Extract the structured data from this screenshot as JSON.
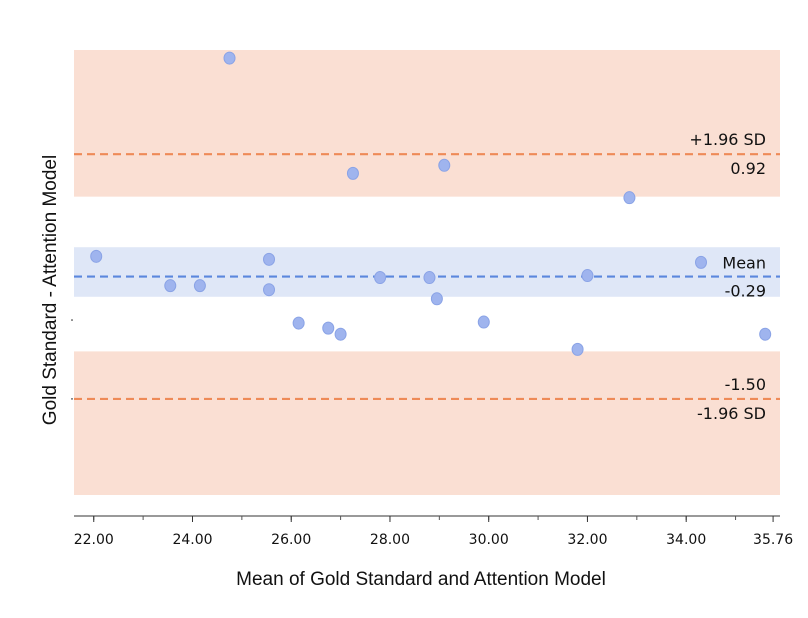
{
  "chart_data": {
    "type": "scatter",
    "title": "",
    "xlabel": "Mean of Gold Standard and Attention Model",
    "ylabel": "Gold Standard - Attention Model",
    "xlim": [
      21.6,
      35.9
    ],
    "ylim": [
      -2.45,
      1.95
    ],
    "x_ticks": [
      22.0,
      24.0,
      26.0,
      28.0,
      30.0,
      32.0,
      34.0,
      35.76
    ],
    "x_tick_labels": [
      "22.00",
      "24.00",
      "26.00",
      "28.00",
      "30.00",
      "32.00",
      "34.00",
      "35.76"
    ],
    "grid": false,
    "points": [
      {
        "x": 22.05,
        "y": -0.09
      },
      {
        "x": 23.55,
        "y": -0.38
      },
      {
        "x": 24.15,
        "y": -0.38
      },
      {
        "x": 24.75,
        "y": 1.87
      },
      {
        "x": 25.55,
        "y": -0.12
      },
      {
        "x": 25.55,
        "y": -0.42
      },
      {
        "x": 26.15,
        "y": -0.75
      },
      {
        "x": 26.75,
        "y": -0.8
      },
      {
        "x": 27.0,
        "y": -0.86
      },
      {
        "x": 27.25,
        "y": 0.73
      },
      {
        "x": 27.8,
        "y": -0.3
      },
      {
        "x": 28.8,
        "y": -0.3
      },
      {
        "x": 28.95,
        "y": -0.51
      },
      {
        "x": 29.1,
        "y": 0.81
      },
      {
        "x": 29.9,
        "y": -0.74
      },
      {
        "x": 31.8,
        "y": -1.01
      },
      {
        "x": 32.0,
        "y": -0.28
      },
      {
        "x": 32.85,
        "y": 0.49
      },
      {
        "x": 34.3,
        "y": -0.15
      },
      {
        "x": 35.6,
        "y": -0.86
      }
    ],
    "lines": {
      "upper_loa": {
        "label": "+1.96 SD",
        "value": 0.92,
        "value_label": "0.92",
        "color": "#ee8a57"
      },
      "mean": {
        "label": "Mean",
        "value": -0.29,
        "value_label": "-0.29",
        "color": "#5b87dd"
      },
      "lower_loa": {
        "label": "-1.96 SD",
        "value": -1.5,
        "value_label": "-1.50",
        "color": "#ee8a57"
      }
    },
    "bands": {
      "upper_loa": {
        "from": 0.5,
        "to": 1.95,
        "color": "#fadfd3"
      },
      "mean": {
        "from": -0.49,
        "to": 0.0,
        "color": "#dfe7f7"
      },
      "lower_loa": {
        "from": -2.45,
        "to": -1.03,
        "color": "#fadfd3"
      }
    },
    "point_color": "#9fb4ee",
    "point_stroke": "#8aa3e6"
  }
}
